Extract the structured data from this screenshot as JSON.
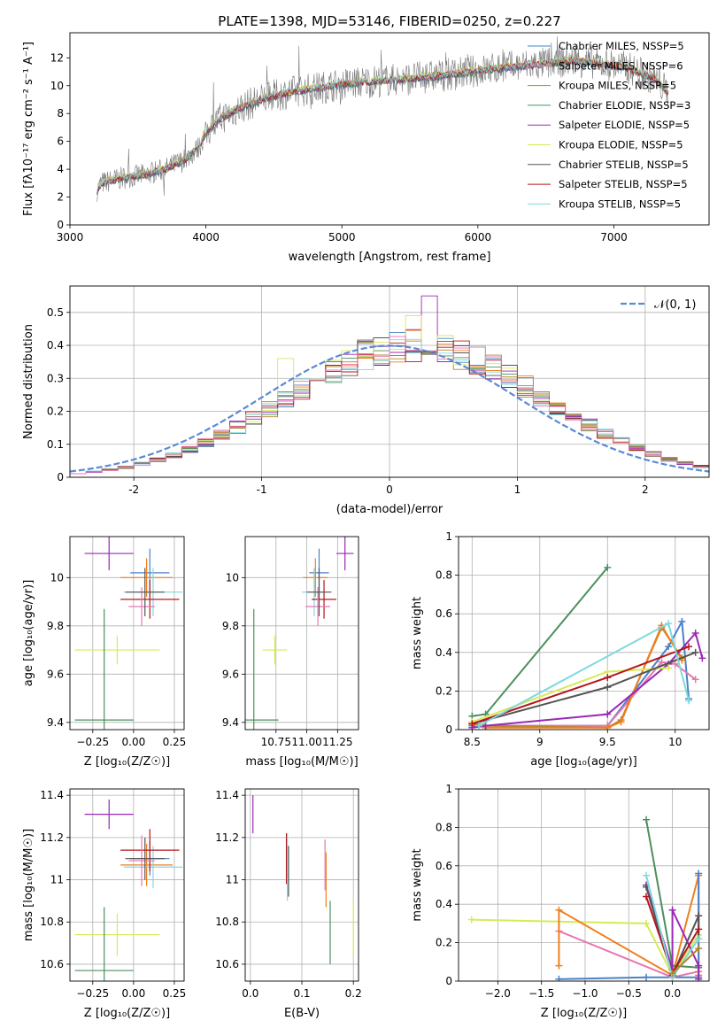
{
  "title": "PLATE=1398, MJD=53146, FIBERID=0250, z=0.227",
  "colors": {
    "c0": "#4a82c9",
    "c1": "#f07f1e",
    "c2": "#b5832a",
    "c3": "#4c8f5e",
    "c4": "#9b28b5",
    "c5": "#d7ea57",
    "c6": "#555555",
    "c7": "#b5161c",
    "c8": "#7fd9de",
    "c9": "#e876b0",
    "normal": "#5b8ad6"
  },
  "chart_data": [
    {
      "id": "spectrum",
      "type": "line",
      "xlabel": "wavelength [Angstrom, rest frame]",
      "ylabel": "Flux [fλ10⁻¹⁷ erg cm⁻² s⁻¹ A⁻¹]",
      "xlim": [
        3000,
        7700
      ],
      "ylim": [
        0,
        13.8
      ],
      "xticks": [
        3000,
        4000,
        5000,
        6000,
        7000
      ],
      "yticks": [
        0,
        2,
        4,
        6,
        8,
        10,
        12
      ],
      "legend_position": "top-right",
      "legend": [
        {
          "label": "Chabrier MILES, NSSP=5",
          "color_key": "c0"
        },
        {
          "label": "Salpeter MILES, NSSP=6",
          "color_key": "c9"
        },
        {
          "label": "Kroupa MILES, NSSP=5",
          "color_key": "c2"
        },
        {
          "label": "Chabrier ELODIE, NSSP=3",
          "color_key": "c3"
        },
        {
          "label": "Salpeter ELODIE, NSSP=5",
          "color_key": "c4"
        },
        {
          "label": "Kroupa ELODIE, NSSP=5",
          "color_key": "c5"
        },
        {
          "label": "Chabrier STELIB, NSSP=5",
          "color_key": "c6"
        },
        {
          "label": "Salpeter STELIB, NSSP=5",
          "color_key": "c7"
        },
        {
          "label": "Kroupa STELIB, NSSP=5",
          "color_key": "c8"
        }
      ],
      "continuum": {
        "x": [
          3200,
          3230,
          3400,
          3550,
          3700,
          3850,
          3950,
          4000,
          4100,
          4250,
          4400,
          4600,
          4800,
          5000,
          5200,
          5500,
          5800,
          6100,
          6400,
          6700,
          6900,
          7100,
          7300,
          7400
        ],
        "y": [
          2.5,
          3.0,
          3.4,
          3.6,
          4.0,
          4.7,
          5.6,
          6.6,
          7.6,
          8.4,
          9.0,
          9.5,
          9.8,
          10.1,
          10.3,
          10.5,
          10.8,
          11.2,
          11.5,
          11.8,
          11.6,
          11.3,
          10.5,
          9.5
        ]
      },
      "observed_noise_amp": 1.2
    },
    {
      "id": "residual-hist",
      "type": "area",
      "xlabel": "(data-model)/error",
      "ylabel": "Normed distribution",
      "xlim": [
        -2.5,
        2.5
      ],
      "ylim": [
        0,
        0.58
      ],
      "xticks": [
        -2,
        -1,
        0,
        1,
        2
      ],
      "yticks": [
        0.0,
        0.1,
        0.2,
        0.3,
        0.4,
        0.5
      ],
      "grid": true,
      "bin_width": 0.125,
      "legend_position": "top-right",
      "legend": [
        {
          "label": "𝒩(0, 1)",
          "color_key": "normal"
        }
      ],
      "highlight_bins": [
        {
          "x": 0.3,
          "value": 0.55,
          "color_key": "c4"
        },
        {
          "x": 0.17,
          "value": 0.49,
          "color_key": "c5"
        },
        {
          "x": -0.8,
          "value": 0.36,
          "color_key": "c5"
        }
      ]
    },
    {
      "id": "age-vs-z",
      "type": "scatter",
      "xlabel": "Z [log₁₀(Z/Z☉)]",
      "ylabel": "age  [log₁₀(age/yr)]",
      "xlim": [
        -0.39,
        0.31
      ],
      "ylim": [
        9.37,
        10.17
      ],
      "xticks": [
        -0.25,
        0.0,
        0.25
      ],
      "xtick_labels": [
        "−0.25",
        "0.00",
        "0.25"
      ],
      "yticks": [
        9.4,
        9.6,
        9.8,
        10.0
      ],
      "grid": true,
      "points": [
        {
          "x": -0.15,
          "y": 10.1,
          "xerr": 0.15,
          "yerr": 0.07,
          "color_key": "c4"
        },
        {
          "x": 0.1,
          "y": 10.02,
          "xerr": 0.12,
          "yerr": 0.1,
          "color_key": "c0"
        },
        {
          "x": 0.08,
          "y": 10.0,
          "xerr": 0.16,
          "yerr": 0.08,
          "color_key": "c1"
        },
        {
          "x": 0.12,
          "y": 9.94,
          "xerr": 0.18,
          "yerr": 0.1,
          "color_key": "c8"
        },
        {
          "x": 0.1,
          "y": 9.91,
          "xerr": 0.18,
          "yerr": 0.08,
          "color_key": "c7"
        },
        {
          "x": 0.05,
          "y": 9.88,
          "xerr": 0.08,
          "yerr": 0.08,
          "color_key": "c9"
        },
        {
          "x": 0.07,
          "y": 9.94,
          "xerr": 0.12,
          "yerr": 0.1,
          "color_key": "c6"
        },
        {
          "x": -0.1,
          "y": 9.7,
          "xerr": 0.26,
          "yerr": 0.06,
          "color_key": "c5"
        },
        {
          "x": -0.18,
          "y": 9.41,
          "xerr": 0.18,
          "yerr": 0.46,
          "color_key": "c3"
        }
      ]
    },
    {
      "id": "age-vs-mass",
      "type": "scatter",
      "xlabel": "mass [log₁₀(M/M☉)]",
      "ylabel": "",
      "xlim": [
        10.5,
        11.42
      ],
      "ylim": [
        9.37,
        10.17
      ],
      "xticks": [
        10.75,
        11.0,
        11.25
      ],
      "xtick_labels": [
        "10.75",
        "11.00",
        "11.25"
      ],
      "yticks": [
        9.4,
        9.6,
        9.8,
        10.0
      ],
      "grid": true,
      "points": [
        {
          "x": 11.31,
          "y": 10.1,
          "xerr": 0.07,
          "yerr": 0.07,
          "color_key": "c4"
        },
        {
          "x": 11.1,
          "y": 10.02,
          "xerr": 0.08,
          "yerr": 0.1,
          "color_key": "c0"
        },
        {
          "x": 11.07,
          "y": 10.0,
          "xerr": 0.1,
          "yerr": 0.08,
          "color_key": "c1"
        },
        {
          "x": 11.06,
          "y": 9.94,
          "xerr": 0.1,
          "yerr": 0.1,
          "color_key": "c8"
        },
        {
          "x": 11.14,
          "y": 9.91,
          "xerr": 0.1,
          "yerr": 0.08,
          "color_key": "c7"
        },
        {
          "x": 11.09,
          "y": 9.88,
          "xerr": 0.1,
          "yerr": 0.08,
          "color_key": "c9"
        },
        {
          "x": 11.1,
          "y": 9.94,
          "xerr": 0.1,
          "yerr": 0.1,
          "color_key": "c6"
        },
        {
          "x": 10.74,
          "y": 9.7,
          "xerr": 0.1,
          "yerr": 0.06,
          "color_key": "c5"
        },
        {
          "x": 10.57,
          "y": 9.41,
          "xerr": 0.2,
          "yerr": 0.46,
          "color_key": "c3"
        }
      ]
    },
    {
      "id": "massweight-vs-age",
      "type": "line",
      "xlabel": "age  [log₁₀(age/yr)]",
      "ylabel": "mass weight",
      "xlim": [
        8.4,
        10.25
      ],
      "ylim": [
        0,
        1.0
      ],
      "xticks": [
        8.5,
        9.0,
        9.5,
        10.0
      ],
      "yticks": [
        0.0,
        0.2,
        0.4,
        0.6,
        0.8,
        1.0
      ],
      "grid": true,
      "series": [
        {
          "color_key": "c0",
          "x": [
            8.5,
            8.6,
            9.5,
            9.95,
            10.05,
            10.1
          ],
          "y": [
            0.02,
            0.02,
            0.02,
            0.43,
            0.56,
            0.16
          ]
        },
        {
          "color_key": "c9",
          "x": [
            8.5,
            8.6,
            9.5,
            9.9,
            10.0,
            10.15
          ],
          "y": [
            0.03,
            0.02,
            0.02,
            0.35,
            0.34,
            0.26
          ]
        },
        {
          "color_key": "c2",
          "x": [
            8.5,
            8.6,
            9.5,
            9.6,
            9.9,
            10.05
          ],
          "y": [
            0.04,
            0.02,
            0.01,
            0.05,
            0.53,
            0.37
          ]
        },
        {
          "color_key": "c1",
          "x": [
            8.5,
            8.6,
            9.5,
            9.6,
            9.9,
            10.05
          ],
          "y": [
            0.03,
            0.01,
            0.01,
            0.04,
            0.54,
            0.36
          ]
        },
        {
          "color_key": "c3",
          "x": [
            8.5,
            8.6,
            9.5
          ],
          "y": [
            0.07,
            0.08,
            0.84
          ]
        },
        {
          "color_key": "c4",
          "x": [
            8.5,
            8.6,
            9.5,
            9.95,
            10.15,
            10.2
          ],
          "y": [
            0.01,
            0.02,
            0.08,
            0.34,
            0.5,
            0.37
          ]
        },
        {
          "color_key": "c5",
          "x": [
            8.5,
            9.5,
            9.95
          ],
          "y": [
            0.04,
            0.3,
            0.32
          ]
        },
        {
          "color_key": "c6",
          "x": [
            8.5,
            9.5,
            10.15
          ],
          "y": [
            0.03,
            0.22,
            0.4
          ]
        },
        {
          "color_key": "c7",
          "x": [
            8.5,
            9.5,
            10.1
          ],
          "y": [
            0.03,
            0.27,
            0.43
          ]
        },
        {
          "color_key": "c8",
          "x": [
            8.55,
            9.95,
            10.1
          ],
          "y": [
            0.02,
            0.55,
            0.15
          ]
        }
      ]
    },
    {
      "id": "mass-vs-z",
      "type": "scatter",
      "xlabel": "Z [log₁₀(Z/Z☉)]",
      "ylabel": "mass [log₁₀(M/M☉)]",
      "xlim": [
        -0.39,
        0.31
      ],
      "ylim": [
        10.52,
        11.43
      ],
      "xticks": [
        -0.25,
        0.0,
        0.25
      ],
      "xtick_labels": [
        "−0.25",
        "0.00",
        "0.25"
      ],
      "yticks": [
        10.6,
        10.8,
        11.0,
        11.2,
        11.4
      ],
      "grid": true,
      "points": [
        {
          "x": -0.15,
          "y": 11.31,
          "xerr": 0.15,
          "yerr": 0.07,
          "color_key": "c4"
        },
        {
          "x": 0.1,
          "y": 11.1,
          "xerr": 0.12,
          "yerr": 0.08,
          "color_key": "c0"
        },
        {
          "x": 0.08,
          "y": 11.07,
          "xerr": 0.16,
          "yerr": 0.1,
          "color_key": "c1"
        },
        {
          "x": 0.12,
          "y": 11.06,
          "xerr": 0.18,
          "yerr": 0.1,
          "color_key": "c8"
        },
        {
          "x": 0.1,
          "y": 11.14,
          "xerr": 0.18,
          "yerr": 0.1,
          "color_key": "c7"
        },
        {
          "x": 0.05,
          "y": 11.09,
          "xerr": 0.08,
          "yerr": 0.12,
          "color_key": "c9"
        },
        {
          "x": 0.07,
          "y": 11.1,
          "xerr": 0.12,
          "yerr": 0.1,
          "color_key": "c6"
        },
        {
          "x": -0.1,
          "y": 10.74,
          "xerr": 0.26,
          "yerr": 0.1,
          "color_key": "c5"
        },
        {
          "x": -0.18,
          "y": 10.57,
          "xerr": 0.18,
          "yerr": 0.3,
          "color_key": "c3"
        }
      ]
    },
    {
      "id": "mass-vs-ebv",
      "type": "scatter",
      "xlabel": "E(B-V)",
      "ylabel": "",
      "xlim": [
        -0.01,
        0.21
      ],
      "ylim": [
        10.52,
        11.43
      ],
      "xticks": [
        0.0,
        0.1,
        0.2
      ],
      "xtick_labels": [
        "0.0",
        "0.1",
        "0.2"
      ],
      "yticks": [
        10.6,
        10.8,
        11.0,
        11.2,
        11.4
      ],
      "grid": true,
      "points": [
        {
          "x": 0.005,
          "y": 11.31,
          "yerr": 0.09,
          "color_key": "c4"
        },
        {
          "x": 0.07,
          "y": 11.1,
          "yerr": 0.12,
          "color_key": "c7"
        },
        {
          "x": 0.072,
          "y": 11.06,
          "yerr": 0.16,
          "color_key": "c8"
        },
        {
          "x": 0.074,
          "y": 11.04,
          "yerr": 0.12,
          "color_key": "c6"
        },
        {
          "x": 0.145,
          "y": 11.07,
          "yerr": 0.12,
          "color_key": "c9"
        },
        {
          "x": 0.147,
          "y": 11.0,
          "yerr": 0.13,
          "color_key": "c1"
        },
        {
          "x": 0.155,
          "y": 10.75,
          "yerr": 0.15,
          "color_key": "c3"
        },
        {
          "x": 0.2,
          "y": 10.77,
          "yerr": 0.13,
          "color_key": "c5"
        }
      ]
    },
    {
      "id": "massweight-vs-z",
      "type": "line",
      "xlabel": "Z [log₁₀(Z/Z☉)]",
      "ylabel": "mass weight",
      "xlim": [
        -2.45,
        0.42
      ],
      "ylim": [
        0,
        1.0
      ],
      "xticks": [
        -2.0,
        -1.5,
        -1.0,
        -0.5,
        0.0
      ],
      "xtick_labels": [
        "−2.0",
        "−1.5",
        "−1.0",
        "−0.5",
        "0.0"
      ],
      "yticks": [
        0.0,
        0.2,
        0.4,
        0.6,
        0.8,
        1.0
      ],
      "grid": true,
      "series": [
        {
          "color_key": "c5",
          "x": [
            -2.3,
            -0.3,
            0.0,
            0.3
          ],
          "y": [
            0.32,
            0.3,
            0.03,
            0.24
          ]
        },
        {
          "color_key": "c9",
          "x": [
            -1.3,
            0.0,
            0.3
          ],
          "y": [
            0.26,
            0.02,
            0.05
          ]
        },
        {
          "color_key": "c1",
          "x": [
            -1.3,
            -1.3,
            0.0,
            0.3,
            0.3,
            0.3
          ],
          "y": [
            0.08,
            0.37,
            0.03,
            0.55,
            0.03,
            0.34
          ]
        },
        {
          "color_key": "c0",
          "x": [
            -1.3,
            -0.3,
            0.3,
            0.3
          ],
          "y": [
            0.01,
            0.02,
            0.02,
            0.56
          ]
        },
        {
          "color_key": "c3",
          "x": [
            -0.3,
            0.0,
            0.3
          ],
          "y": [
            0.84,
            0.08,
            0.07
          ]
        },
        {
          "color_key": "c4",
          "x": [
            -0.3,
            0.0,
            0.0,
            0.3,
            0.3
          ],
          "y": [
            0.5,
            0.06,
            0.37,
            0.08,
            0.01
          ]
        },
        {
          "color_key": "c6",
          "x": [
            -0.3,
            0.0,
            0.3,
            0.3
          ],
          "y": [
            0.49,
            0.03,
            0.34,
            0.22
          ]
        },
        {
          "color_key": "c7",
          "x": [
            -0.3,
            0.0,
            0.3
          ],
          "y": [
            0.44,
            0.04,
            0.27
          ]
        },
        {
          "color_key": "c8",
          "x": [
            -0.3,
            0.0,
            0.3
          ],
          "y": [
            0.55,
            0.02,
            0.22
          ]
        },
        {
          "color_key": "c2",
          "x": [
            0.0,
            0.3
          ],
          "y": [
            0.04,
            0.17
          ]
        }
      ]
    }
  ]
}
